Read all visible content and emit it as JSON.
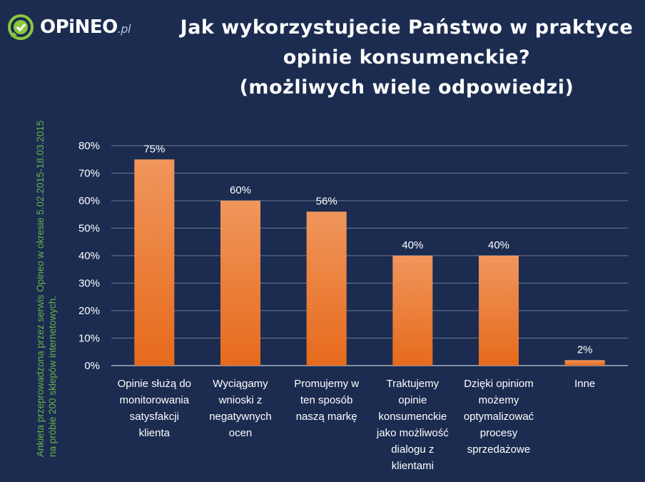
{
  "logo": {
    "name": "OPiNEO",
    "suffix": ".pl",
    "icon": "check-bubble-icon"
  },
  "side_note": [
    "Ankieta przeprowadzona przez serwis Opineo w okresie 5.02.2015-18.03.2015",
    "na próbie 200 sklepów internetowych."
  ],
  "colors": {
    "background": "#1b2c50",
    "bar_top": "#f0965c",
    "bar_bottom": "#e66a1c",
    "note": "#6ab04c"
  },
  "chart_data": {
    "type": "bar",
    "title": [
      "Jak wykorzystujecie Państwo w praktyce",
      "opinie konsumenckie?",
      "(możliwych wiele odpowiedzi)"
    ],
    "categories": [
      [
        "Opinie służą do",
        "monitorowania",
        "satysfakcji",
        "klienta"
      ],
      [
        "Wyciągamy",
        "wnioski z",
        "negatywnych",
        "ocen"
      ],
      [
        "Promujemy w",
        "ten sposób",
        "naszą markę"
      ],
      [
        "Traktujemy",
        "opinie",
        "konsumenckie",
        "jako możliwość",
        "dialogu z",
        "klientami"
      ],
      [
        "Dzięki opiniom",
        "możemy",
        "optymalizować",
        "procesy",
        "sprzedażowe"
      ],
      [
        "Inne"
      ]
    ],
    "values": [
      75,
      60,
      56,
      40,
      40,
      2
    ],
    "data_labels": [
      "75%",
      "60%",
      "56%",
      "40%",
      "40%",
      "2%"
    ],
    "yticks": [
      "0%",
      "10%",
      "20%",
      "30%",
      "40%",
      "50%",
      "60%",
      "70%",
      "80%"
    ],
    "ylim": [
      0,
      80
    ],
    "grid": true,
    "xlabel": "",
    "ylabel": ""
  }
}
